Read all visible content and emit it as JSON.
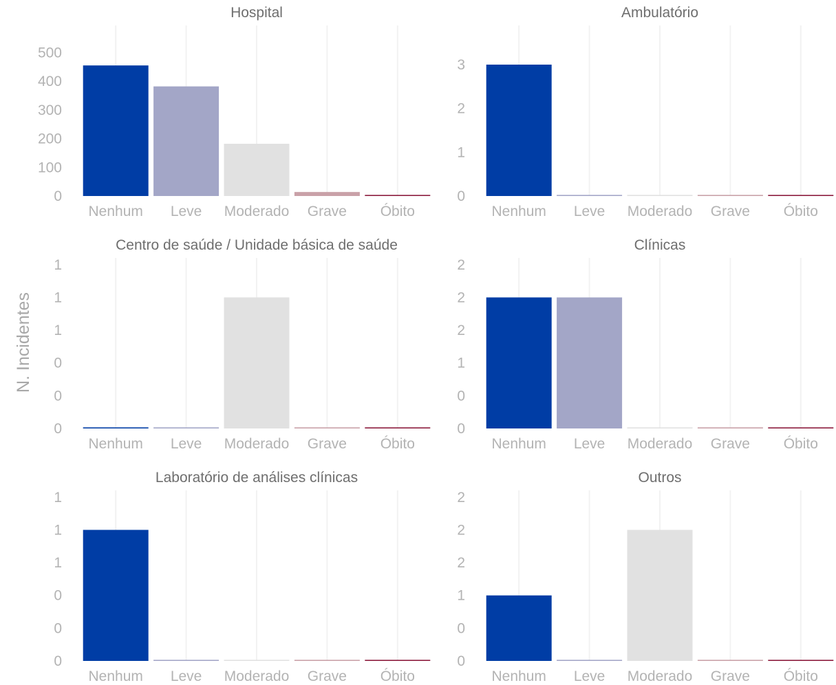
{
  "chart_data": {
    "type": "bar",
    "ylabel": "N. Incidentes",
    "categories": [
      "Nenhum",
      "Leve",
      "Moderado",
      "Grave",
      "Óbito"
    ],
    "category_colors": [
      "#003da5",
      "#a3a6c7",
      "#e1e1e1",
      "#c9a1a8",
      "#8b1a3c"
    ],
    "panels": [
      {
        "title": "Hospital",
        "values": [
          455,
          382,
          182,
          14,
          1
        ],
        "ylim": [
          0,
          580
        ],
        "yticks": [
          0,
          100,
          200,
          300,
          400,
          500
        ],
        "ytick_labels": [
          "0",
          "100",
          "200",
          "300",
          "400",
          "500"
        ]
      },
      {
        "title": "Ambulatório",
        "values": [
          3,
          0,
          0,
          0,
          0
        ],
        "ylim": [
          0,
          3.8
        ],
        "yticks": [
          0,
          1,
          2,
          3
        ],
        "ytick_labels": [
          "0",
          "1",
          "2",
          "3"
        ]
      },
      {
        "title": "Centro de saúde / Unidade básica de saúde",
        "values": [
          0,
          0,
          1,
          0,
          0
        ],
        "ylim": [
          0,
          1.27
        ],
        "yticks": [
          0,
          0.25,
          0.5,
          0.75,
          1.0,
          1.25
        ],
        "ytick_labels": [
          "0",
          "0",
          "0",
          "1",
          "1",
          "1"
        ]
      },
      {
        "title": "Clínicas",
        "values": [
          2,
          2,
          0,
          0,
          0
        ],
        "ylim": [
          0,
          2.54
        ],
        "yticks": [
          0,
          0.5,
          1.0,
          1.5,
          2.0,
          2.5
        ],
        "ytick_labels": [
          "0",
          "0",
          "1",
          "2",
          "2",
          "2"
        ]
      },
      {
        "title": "Laboratório de análises clínicas",
        "values": [
          1,
          0,
          0,
          0,
          0
        ],
        "ylim": [
          0,
          1.27
        ],
        "yticks": [
          0,
          0.25,
          0.5,
          0.75,
          1.0,
          1.25
        ],
        "ytick_labels": [
          "0",
          "0",
          "0",
          "1",
          "1",
          "1"
        ]
      },
      {
        "title": "Outros",
        "values": [
          1,
          0,
          2,
          0,
          0
        ],
        "ylim": [
          0,
          2.54
        ],
        "yticks": [
          0,
          0.5,
          1.0,
          1.5,
          2.0,
          2.5
        ],
        "ytick_labels": [
          "0",
          "0",
          "1",
          "2",
          "2",
          "2"
        ]
      }
    ]
  }
}
